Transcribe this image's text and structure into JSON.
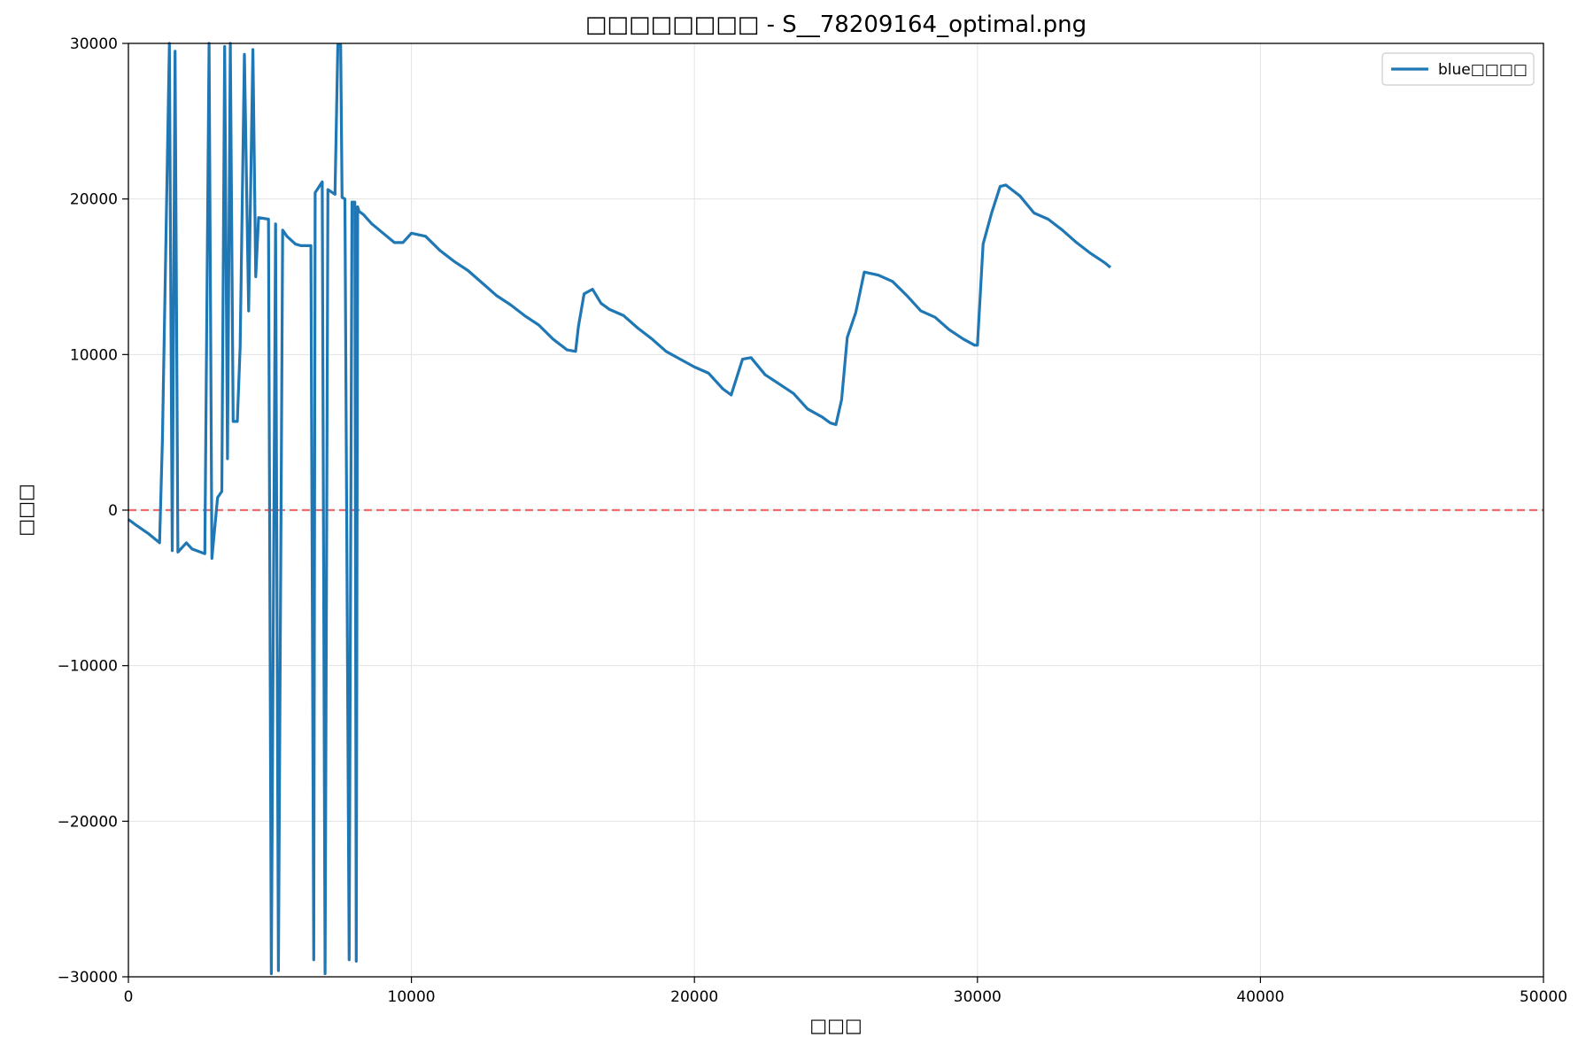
{
  "chart_data": {
    "type": "line",
    "title": "□□□□□□□□ - S__78209164_optimal.png",
    "xlabel": "□□□",
    "ylabel": "□□□",
    "xlim": [
      0,
      50000
    ],
    "ylim": [
      -30000,
      30000
    ],
    "xticks": [
      "0",
      "10000",
      "20000",
      "30000",
      "40000",
      "50000"
    ],
    "yticks": [
      "−30000",
      "−20000",
      "−10000",
      "0",
      "10000",
      "20000",
      "30000"
    ],
    "grid": true,
    "legend_position": "top-right",
    "reference_line": {
      "y": 0,
      "style": "dashed",
      "color": "#f26b6b"
    },
    "series": [
      {
        "name": "blue□□□□",
        "color": "#1f77b4",
        "x": [
          0,
          300,
          700,
          1100,
          1200,
          1450,
          1550,
          1650,
          1750,
          2050,
          2250,
          2700,
          2850,
          2950,
          3150,
          3300,
          3400,
          3500,
          3600,
          3700,
          3850,
          3950,
          4100,
          4250,
          4400,
          4500,
          4600,
          4950,
          5050,
          5200,
          5300,
          5450,
          5600,
          5900,
          6100,
          6450,
          6550,
          6600,
          6850,
          6950,
          7050,
          7300,
          7400,
          7500,
          7550,
          7650,
          7800,
          7900,
          8000,
          8050,
          8100,
          8150,
          8300,
          8600,
          9000,
          9400,
          9700,
          10000,
          10500,
          11000,
          11500,
          12000,
          12500,
          13000,
          13500,
          14000,
          14500,
          15000,
          15500,
          15800,
          15900,
          16100,
          16400,
          16700,
          17000,
          17500,
          18000,
          18500,
          19000,
          19500,
          20000,
          20500,
          21000,
          21300,
          21700,
          22000,
          22500,
          23000,
          23500,
          24000,
          24500,
          24800,
          25000,
          25200,
          25400,
          25700,
          26000,
          26500,
          27000,
          27500,
          28000,
          28500,
          29000,
          29500,
          29900,
          30000,
          30200,
          30500,
          30800,
          31000,
          31500,
          32000,
          32500,
          33000,
          33500,
          34000,
          34500,
          34700
        ],
        "y": [
          -600,
          -1000,
          -1500,
          -2100,
          4500,
          30000,
          -2600,
          29500,
          -2700,
          -2100,
          -2500,
          -2800,
          30000,
          -3100,
          800,
          1200,
          29800,
          3300,
          30000,
          5700,
          5700,
          10500,
          29300,
          12800,
          29600,
          15000,
          18800,
          18700,
          -29800,
          18400,
          -29600,
          18000,
          17600,
          17100,
          17000,
          17000,
          -28900,
          20400,
          21100,
          -29800,
          20600,
          20300,
          29900,
          29900,
          20100,
          20000,
          -28900,
          19800,
          19800,
          -29000,
          19500,
          19200,
          19000,
          18400,
          17800,
          17200,
          17200,
          17800,
          17600,
          16700,
          16000,
          15400,
          14600,
          13800,
          13200,
          12500,
          11900,
          11000,
          10300,
          10200,
          11800,
          13900,
          14200,
          13300,
          12900,
          12500,
          11700,
          11000,
          10200,
          9700,
          9200,
          8800,
          7800,
          7400,
          9700,
          9800,
          8700,
          8100,
          7500,
          6500,
          6000,
          5600,
          5500,
          7100,
          11100,
          12700,
          15300,
          15100,
          14700,
          13800,
          12800,
          12400,
          11600,
          11000,
          10600,
          10600,
          17100,
          19100,
          20800,
          20900,
          20200,
          19100,
          18700,
          18000,
          17200,
          16500,
          15900,
          15600
        ]
      }
    ]
  }
}
